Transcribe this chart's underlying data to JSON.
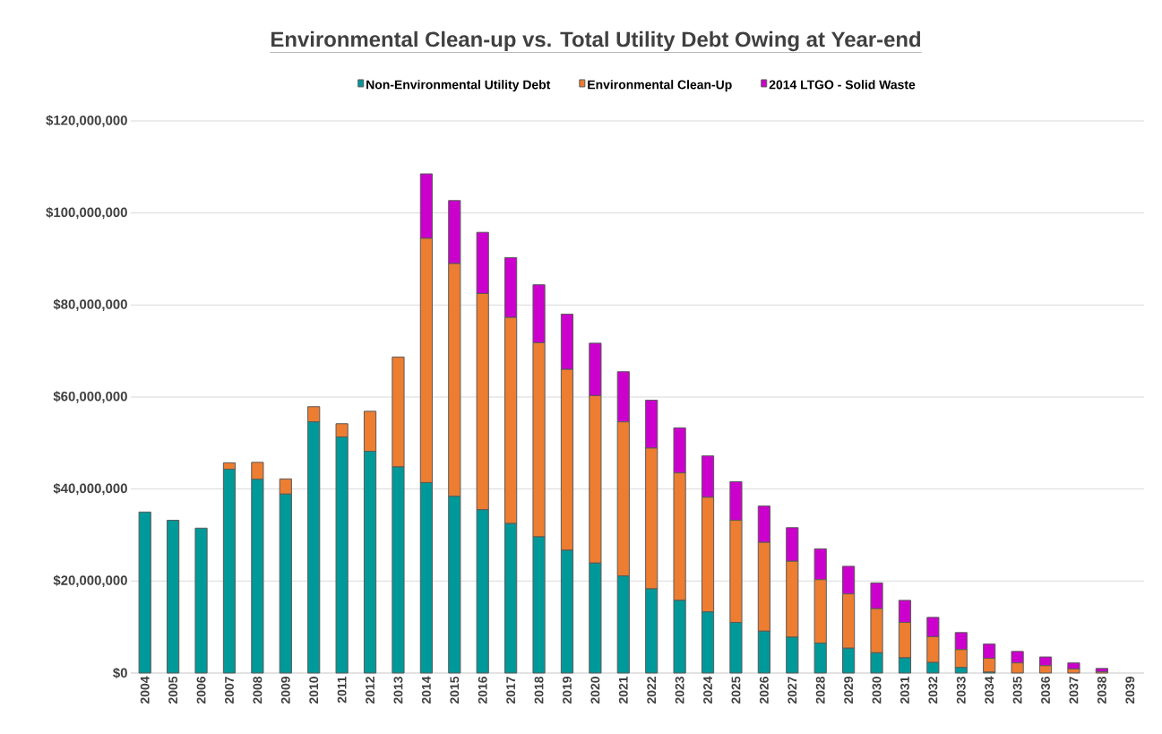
{
  "chart_data": {
    "type": "bar",
    "title": "Environmental Clean-up vs. Total Utility Debt Owing at Year-end",
    "categories": [
      "2004",
      "2005",
      "2006",
      "2007",
      "2008",
      "2009",
      "2010",
      "2011",
      "2012",
      "2013",
      "2014",
      "2015",
      "2016",
      "2017",
      "2018",
      "2019",
      "2020",
      "2021",
      "2022",
      "2023",
      "2024",
      "2025",
      "2026",
      "2027",
      "2028",
      "2029",
      "2030",
      "2031",
      "2032",
      "2033",
      "2034",
      "2035",
      "2036",
      "2037",
      "2038",
      "2039"
    ],
    "series": [
      {
        "name": "Non-Environmental Utility Debt",
        "color": "#009999",
        "values": [
          35000000,
          33200000,
          31500000,
          44300000,
          42100000,
          38900000,
          54600000,
          51300000,
          48200000,
          44800000,
          41400000,
          38400000,
          35500000,
          32500000,
          29600000,
          26700000,
          23900000,
          21100000,
          18300000,
          15800000,
          13300000,
          11000000,
          9100000,
          7800000,
          6500000,
          5400000,
          4400000,
          3300000,
          2300000,
          1200000,
          200000,
          0,
          0,
          0,
          0,
          0
        ]
      },
      {
        "name": "Environmental Clean-Up",
        "color": "#ed7d31",
        "values": [
          0,
          0,
          0,
          1400000,
          3700000,
          3300000,
          3300000,
          2900000,
          8700000,
          23900000,
          53100000,
          50600000,
          47000000,
          44800000,
          42200000,
          39300000,
          36400000,
          33500000,
          30600000,
          27700000,
          24900000,
          22200000,
          19300000,
          16500000,
          13800000,
          11800000,
          9600000,
          7700000,
          5600000,
          3900000,
          3000000,
          2200000,
          1600000,
          900000,
          300000,
          0
        ]
      },
      {
        "name": "2014 LTGO - Solid Waste",
        "color": "#cc00cc",
        "values": [
          0,
          0,
          0,
          0,
          0,
          0,
          0,
          0,
          0,
          0,
          14000000,
          13700000,
          13300000,
          13000000,
          12600000,
          12000000,
          11400000,
          10900000,
          10400000,
          9800000,
          9000000,
          8400000,
          7900000,
          7300000,
          6700000,
          6000000,
          5600000,
          4800000,
          4200000,
          3700000,
          3100000,
          2500000,
          1900000,
          1300000,
          700000,
          0
        ]
      }
    ],
    "stacked": true,
    "ylim": [
      0,
      120000000
    ],
    "yticks": [
      {
        "value": 0,
        "label": "$0"
      },
      {
        "value": 20000000,
        "label": "$20,000,000"
      },
      {
        "value": 40000000,
        "label": "$40,000,000"
      },
      {
        "value": 60000000,
        "label": "$60,000,000"
      },
      {
        "value": 80000000,
        "label": "$80,000,000"
      },
      {
        "value": 100000000,
        "label": "$100,000,000"
      },
      {
        "value": 120000000,
        "label": "$120,000,000"
      }
    ],
    "grid": "y",
    "legend": "top"
  }
}
